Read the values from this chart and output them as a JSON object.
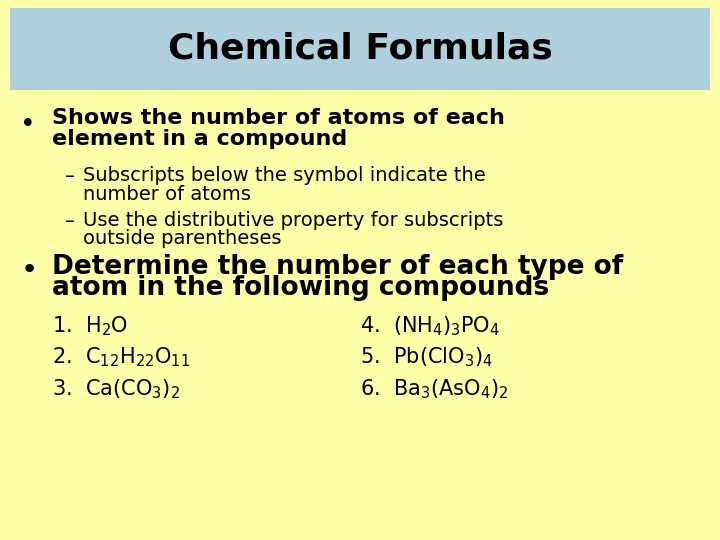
{
  "title": "Chemical Formulas",
  "title_bg_color": "#afd0dc",
  "bg_color": "#ffffaa",
  "title_fontsize": 26,
  "title_fontweight": "bold",
  "bullet1_line1": "Shows the number of atoms of each",
  "bullet1_line2": "element in a compound",
  "sub1_line1": "Subscripts below the symbol indicate the",
  "sub1_line2": "number of atoms",
  "sub2_line1": "Use the distributive property for subscripts",
  "sub2_line2": "outside parentheses",
  "bullet2_line1": "Determine the number of each type of",
  "bullet2_line2": "atom in the following compounds",
  "formulas_left": [
    [
      "1.  H",
      "2",
      "O"
    ],
    [
      "2.  C",
      "12",
      "H",
      "22",
      "O",
      "11"
    ],
    [
      "3.  Ca(CO",
      "3",
      ")",
      "2"
    ]
  ],
  "formulas_right": [
    [
      "4.  (NH",
      "4",
      ")",
      "3",
      "PO",
      "4"
    ],
    [
      "5.  Pb(ClO",
      "3",
      ")",
      "4"
    ],
    [
      "6.  Ba",
      "3",
      "(AsO",
      "4",
      ")",
      "2"
    ]
  ],
  "body_fontsize": 16,
  "sub_fontsize": 14,
  "bullet2_fontsize": 19,
  "formula_fontsize": 15
}
